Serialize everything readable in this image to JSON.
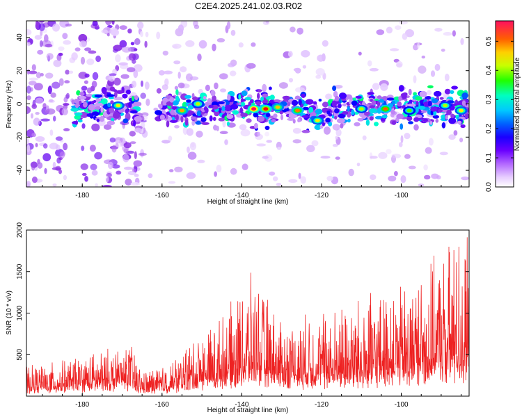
{
  "title": "C2E4.2025.241.02.03.R02",
  "spectrogram": {
    "type": "heatmap",
    "xlabel": "Height of straight line (km)",
    "ylabel": "Frequency (Hz)",
    "xlim": [
      -194,
      -83
    ],
    "ylim": [
      -50,
      50
    ],
    "x_ticks": [
      -180,
      -160,
      -140,
      -120,
      -100
    ],
    "y_ticks": [
      -40,
      -20,
      0,
      20,
      40
    ],
    "x_tick_labels": [
      "-180",
      "-160",
      "-140",
      "-120",
      "-100"
    ],
    "y_tick_labels": [
      "-40",
      "-20",
      "0",
      "20",
      "40"
    ],
    "colorbar": {
      "label": "Normalized spectral amplitude",
      "range": [
        0,
        0.57
      ],
      "ticks": [
        0,
        0.1,
        0.2,
        0.3,
        0.4,
        0.5
      ],
      "tick_labels": [
        "0.0",
        "0.1",
        "0.2",
        "0.3",
        "0.4",
        "0.5"
      ],
      "colors": [
        "#ffffff",
        "#d9b3ff",
        "#8a2be2",
        "#5a00ff",
        "#0000ff",
        "#00bfff",
        "#00ffcc",
        "#00ff00",
        "#ffff00",
        "#ff8000",
        "#ff0000",
        "#ff1493"
      ]
    },
    "signal_band_center_hz": -2,
    "strong_points": [
      {
        "x": -171,
        "y": -1,
        "v": 0.42
      },
      {
        "x": -155,
        "y": -4,
        "v": 0.45
      },
      {
        "x": -151,
        "y": 0,
        "v": 0.4
      },
      {
        "x": -137,
        "y": -3,
        "v": 0.55
      },
      {
        "x": -134,
        "y": -3,
        "v": 0.52
      },
      {
        "x": -131,
        "y": -2,
        "v": 0.44
      },
      {
        "x": -126,
        "y": -4,
        "v": 0.47
      },
      {
        "x": -121,
        "y": -10,
        "v": 0.42
      },
      {
        "x": -110,
        "y": -3,
        "v": 0.4
      },
      {
        "x": -104,
        "y": -3,
        "v": 0.48
      },
      {
        "x": -98,
        "y": -4,
        "v": 0.38
      },
      {
        "x": -89,
        "y": -1,
        "v": 0.4
      },
      {
        "x": -85,
        "y": -4,
        "v": 0.42
      }
    ]
  },
  "snr": {
    "type": "line",
    "xlabel": "Height of straight line (km)",
    "ylabel": "SNR (10 * v/v)",
    "xlim": [
      -194,
      -83
    ],
    "ylim": [
      0,
      2000
    ],
    "x_ticks": [
      -180,
      -160,
      -140,
      -120,
      -100
    ],
    "y_ticks": [
      500,
      1000,
      1500,
      2000
    ],
    "x_tick_labels": [
      "-180",
      "-160",
      "-140",
      "-120",
      "-100"
    ],
    "y_tick_labels": [
      "500",
      "1000",
      "1500",
      "2000"
    ],
    "color": "#ee2222",
    "envelope": [
      {
        "x": -194,
        "lo": 20,
        "hi": 350
      },
      {
        "x": -185,
        "lo": 30,
        "hi": 420
      },
      {
        "x": -178,
        "lo": 30,
        "hi": 520
      },
      {
        "x": -172,
        "lo": 40,
        "hi": 580
      },
      {
        "x": -168,
        "lo": 40,
        "hi": 650
      },
      {
        "x": -165,
        "lo": 20,
        "hi": 300
      },
      {
        "x": -158,
        "lo": 20,
        "hi": 400
      },
      {
        "x": -152,
        "lo": 30,
        "hi": 700
      },
      {
        "x": -145,
        "lo": 40,
        "hi": 950
      },
      {
        "x": -137,
        "lo": 40,
        "hi": 1480
      },
      {
        "x": -130,
        "lo": 40,
        "hi": 900
      },
      {
        "x": -122,
        "lo": 40,
        "hi": 1000
      },
      {
        "x": -115,
        "lo": 40,
        "hi": 1100
      },
      {
        "x": -108,
        "lo": 40,
        "hi": 1200
      },
      {
        "x": -100,
        "lo": 50,
        "hi": 1300
      },
      {
        "x": -95,
        "lo": 50,
        "hi": 1500
      },
      {
        "x": -90,
        "lo": 60,
        "hi": 1700
      },
      {
        "x": -86,
        "lo": 60,
        "hi": 2000
      },
      {
        "x": -83,
        "lo": 60,
        "hi": 1800
      }
    ]
  }
}
